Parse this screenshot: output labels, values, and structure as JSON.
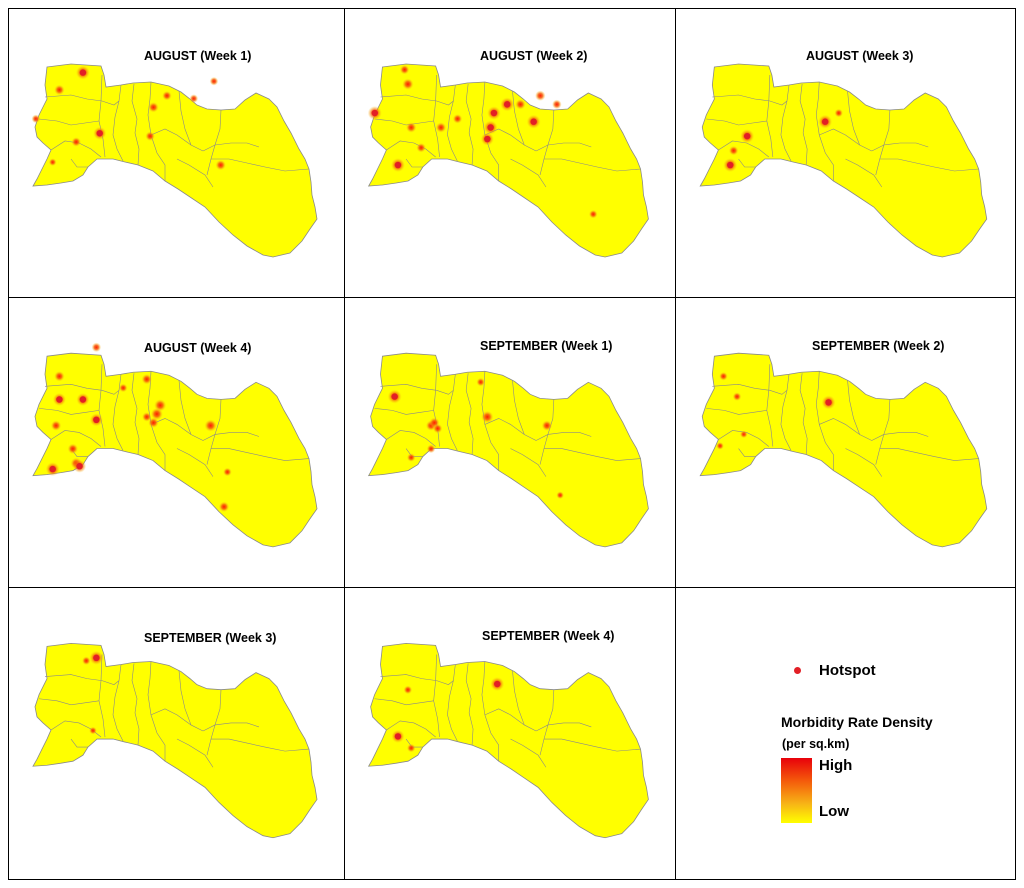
{
  "panels": [
    {
      "title": "AUGUST (Week 1)",
      "hotspots": [
        [
          0.22,
          0.22,
          1.0
        ],
        [
          0.15,
          0.28,
          0.6
        ],
        [
          0.43,
          0.34,
          0.6
        ],
        [
          0.47,
          0.3,
          0.5
        ],
        [
          0.61,
          0.25,
          0.4
        ],
        [
          0.55,
          0.31,
          0.4
        ],
        [
          0.08,
          0.38,
          0.4
        ],
        [
          0.27,
          0.43,
          0.9
        ],
        [
          0.2,
          0.46,
          0.5
        ],
        [
          0.42,
          0.44,
          0.5
        ],
        [
          0.63,
          0.54,
          0.6
        ],
        [
          0.13,
          0.53,
          0.3
        ]
      ]
    },
    {
      "title": "AUGUST (Week 2)",
      "hotspots": [
        [
          0.18,
          0.21,
          0.5
        ],
        [
          0.19,
          0.26,
          0.7
        ],
        [
          0.09,
          0.36,
          1.0
        ],
        [
          0.2,
          0.41,
          0.6
        ],
        [
          0.29,
          0.41,
          0.6
        ],
        [
          0.34,
          0.38,
          0.5
        ],
        [
          0.45,
          0.36,
          0.95
        ],
        [
          0.49,
          0.33,
          1.0
        ],
        [
          0.44,
          0.41,
          1.0
        ],
        [
          0.43,
          0.45,
          0.9
        ],
        [
          0.57,
          0.39,
          1.0
        ],
        [
          0.59,
          0.3,
          0.6
        ],
        [
          0.53,
          0.33,
          0.6
        ],
        [
          0.64,
          0.33,
          0.5
        ],
        [
          0.16,
          0.54,
          1.0
        ],
        [
          0.23,
          0.48,
          0.5
        ],
        [
          0.75,
          0.71,
          0.4
        ]
      ]
    },
    {
      "title": "AUGUST (Week 3)",
      "hotspots": [
        [
          0.21,
          0.44,
          1.0
        ],
        [
          0.17,
          0.49,
          0.5
        ],
        [
          0.16,
          0.54,
          1.0
        ],
        [
          0.44,
          0.39,
          1.0
        ],
        [
          0.48,
          0.36,
          0.4
        ]
      ]
    },
    {
      "title": "AUGUST (Week 4)",
      "hotspots": [
        [
          0.15,
          0.27,
          0.6
        ],
        [
          0.26,
          0.17,
          0.5
        ],
        [
          0.15,
          0.35,
          0.9
        ],
        [
          0.22,
          0.35,
          0.9
        ],
        [
          0.26,
          0.42,
          0.9
        ],
        [
          0.14,
          0.44,
          0.6
        ],
        [
          0.41,
          0.28,
          0.6
        ],
        [
          0.45,
          0.37,
          0.8
        ],
        [
          0.44,
          0.4,
          0.8
        ],
        [
          0.43,
          0.43,
          0.6
        ],
        [
          0.41,
          0.41,
          0.5
        ],
        [
          0.6,
          0.44,
          0.8
        ],
        [
          0.19,
          0.52,
          0.6
        ],
        [
          0.2,
          0.57,
          0.7
        ],
        [
          0.21,
          0.58,
          0.9
        ],
        [
          0.13,
          0.59,
          1.0
        ],
        [
          0.64,
          0.72,
          0.6
        ],
        [
          0.65,
          0.6,
          0.4
        ],
        [
          0.34,
          0.31,
          0.4
        ]
      ]
    },
    {
      "title": "SEPTEMBER (Week 1)",
      "hotspots": [
        [
          0.15,
          0.34,
          1.0
        ],
        [
          0.26,
          0.44,
          0.6
        ],
        [
          0.27,
          0.43,
          0.6
        ],
        [
          0.28,
          0.45,
          0.5
        ],
        [
          0.43,
          0.41,
          0.8
        ],
        [
          0.41,
          0.29,
          0.4
        ],
        [
          0.61,
          0.44,
          0.6
        ],
        [
          0.2,
          0.55,
          0.4
        ],
        [
          0.26,
          0.52,
          0.4
        ],
        [
          0.65,
          0.68,
          0.3
        ]
      ]
    },
    {
      "title": "SEPTEMBER (Week 2)",
      "hotspots": [
        [
          0.14,
          0.27,
          0.4
        ],
        [
          0.45,
          0.36,
          1.0
        ],
        [
          0.18,
          0.34,
          0.4
        ],
        [
          0.13,
          0.51,
          0.3
        ],
        [
          0.2,
          0.47,
          0.3
        ]
      ]
    },
    {
      "title": "SEPTEMBER (Week 3)",
      "hotspots": [
        [
          0.26,
          0.24,
          1.0
        ],
        [
          0.23,
          0.25,
          0.4
        ],
        [
          0.25,
          0.49,
          0.3
        ]
      ]
    },
    {
      "title": "SEPTEMBER (Week 4)",
      "hotspots": [
        [
          0.46,
          0.33,
          1.0
        ],
        [
          0.19,
          0.35,
          0.4
        ],
        [
          0.16,
          0.51,
          0.9
        ],
        [
          0.2,
          0.55,
          0.4
        ]
      ]
    }
  ],
  "legend": {
    "hotspot_label": "Hotspot",
    "density_title": "Morbidity Rate Density",
    "density_unit": "(per sq.km)",
    "high_label": "High",
    "low_label": "Low",
    "colors": {
      "high": "#e8000b",
      "mid": "#f45a0b",
      "low": "#ffff00",
      "hotspot": "#e21f26"
    }
  },
  "map_fill": "#ffff00",
  "boundary_color": "#8a8a8a"
}
